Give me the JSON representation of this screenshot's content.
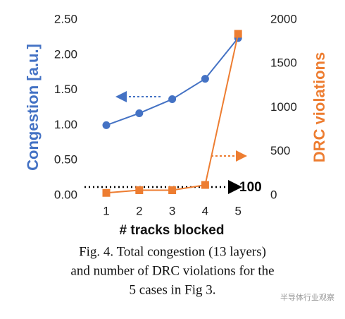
{
  "chart_data": {
    "type": "line",
    "categories": [
      "1",
      "2",
      "3",
      "4",
      "5"
    ],
    "x_label": "# tracks blocked",
    "y_label": "Congestion [a.u.]",
    "y2_label": "DRC violations",
    "ylim": [
      0,
      2.5
    ],
    "yticks": [
      {
        "value": 0,
        "label": "0.00"
      },
      {
        "value": 0.5,
        "label": "0.50"
      },
      {
        "value": 1,
        "label": "1.00"
      },
      {
        "value": 1.5,
        "label": "1.50"
      },
      {
        "value": 2,
        "label": "2.00"
      },
      {
        "value": 2.5,
        "label": "2.50"
      }
    ],
    "y2lim": [
      0,
      2000
    ],
    "y2ticks": [
      0,
      500,
      1000,
      1500,
      2000
    ],
    "grid": false,
    "series": [
      {
        "name": "Congestion",
        "color": "#4472c4",
        "values": [
          1.0,
          1.17,
          1.37,
          1.66,
          2.24
        ]
      },
      {
        "name": "DRC violations",
        "color": "#ed7d31",
        "axis": "y2",
        "values": [
          30,
          60,
          60,
          120,
          1840
        ]
      }
    ],
    "annotations": [
      "100"
    ],
    "caption": [
      "Fig. 4. Total congestion (13 layers)",
      "and number of DRC violations  for the",
      "5 cases in Fig 3."
    ],
    "watermark": "半导体行业观察"
  }
}
